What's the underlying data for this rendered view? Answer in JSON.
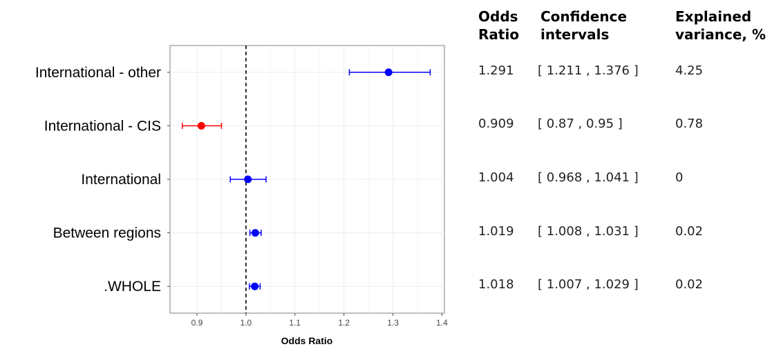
{
  "chart_data": {
    "type": "forest",
    "xlabel": "Odds Ratio",
    "xlim": [
      0.845,
      1.405
    ],
    "xticks": [
      "0.9",
      "1.0",
      "1.1",
      "1.2",
      "1.3",
      "1.4"
    ],
    "reference_line": 1.0,
    "grid": true,
    "rows": [
      {
        "label": "International - other",
        "or": 1.291,
        "lo": 1.211,
        "hi": 1.376,
        "color": "#0000ff"
      },
      {
        "label": "International - CIS",
        "or": 0.909,
        "lo": 0.87,
        "hi": 0.95,
        "color": "#ff0000"
      },
      {
        "label": "International",
        "or": 1.004,
        "lo": 0.968,
        "hi": 1.041,
        "color": "#0000ff"
      },
      {
        "label": "Between regions",
        "or": 1.019,
        "lo": 1.008,
        "hi": 1.031,
        "color": "#0000ff"
      },
      {
        "label": ".WHOLE",
        "or": 1.018,
        "lo": 1.007,
        "hi": 1.029,
        "color": "#0000ff"
      }
    ]
  },
  "table": {
    "headers": {
      "odds": [
        "Odds",
        "Ratio"
      ],
      "ci": [
        "Confidence",
        "intervals"
      ],
      "ev": [
        "Explained",
        "variance, %"
      ]
    },
    "rows": [
      {
        "odds": "1.291",
        "ci": "[ 1.211 , 1.376 ]",
        "ev": "4.25"
      },
      {
        "odds": "0.909",
        "ci": "[ 0.87 , 0.95 ]",
        "ev": "0.78"
      },
      {
        "odds": "1.004",
        "ci": "[ 0.968 , 1.041 ]",
        "ev": "0"
      },
      {
        "odds": "1.019",
        "ci": "[ 1.008 , 1.031 ]",
        "ev": "0.02"
      },
      {
        "odds": "1.018",
        "ci": "[ 1.007 , 1.029 ]",
        "ev": "0.02"
      }
    ]
  }
}
